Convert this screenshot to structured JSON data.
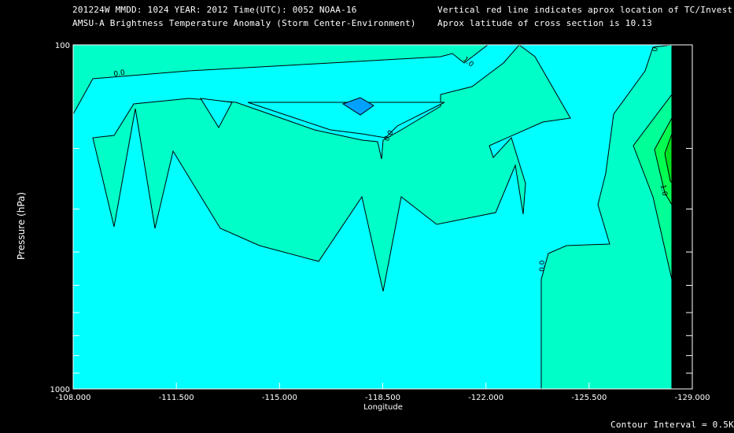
{
  "header": {
    "line1_left": "201224W  MMDD: 1024 YEAR: 2012 Time(UTC): 0052 NOAA-16",
    "line2_left": "AMSU-A Brightness Temperature Anomaly (Storm Center-Environment)",
    "line1_right": "Vertical red line indicates aprox location of TC/Invest",
    "line2_right": "Aprox latitude of cross section is 10.13"
  },
  "footer": {
    "contour_interval": "Contour Interval = 0.5K"
  },
  "colors": {
    "background": "#000000",
    "level_neg05": "#00a0ff",
    "level_0": "#00ffff",
    "level_05": "#00ffc8",
    "level_1": "#00ff96",
    "level_15": "#00ff50",
    "level_2": "#00e020",
    "contour_line": "#000000"
  },
  "chart_data": {
    "type": "contour",
    "title": "AMSU-A Brightness Temperature Anomaly (Storm Center-Environment)",
    "xlabel": "Longitude",
    "ylabel": "Pressure (hPa)",
    "x_ticks": [
      "-108.000",
      "-111.500",
      "-115.000",
      "-118.500",
      "-122.000",
      "-125.500",
      "-129.000"
    ],
    "y_ticks": [
      "100",
      "1000"
    ],
    "xlim": [
      -108,
      -129
    ],
    "ylim": [
      1000,
      100
    ],
    "y_scale": "log",
    "contour_interval": 0.5,
    "contour_labels": [
      "0.0",
      "1.0",
      "0.0",
      "1.0",
      "0.0",
      "0.0"
    ],
    "filled_levels": [
      {
        "level": "0.0 to 0.5",
        "color": "#00ffff",
        "region": "background and mid-level band"
      },
      {
        "level": "0.5 to 1.0",
        "color": "#00ffc8",
        "region": "upper troposphere and western flank"
      },
      {
        "level": "-0.5 to 0.0",
        "color": "#00a0ff",
        "region": "small cell near -116.5, 150 hPa"
      },
      {
        "level": "1.0 to 2.0",
        "color": "#00ff50",
        "region": "near -128.5, 200 hPa"
      }
    ]
  }
}
